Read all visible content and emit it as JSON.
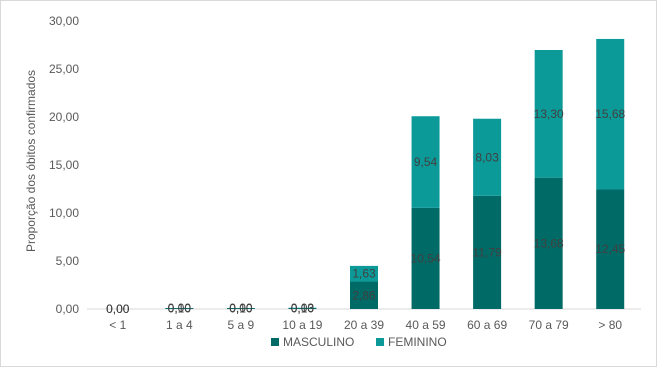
{
  "chart_data": {
    "type": "bar",
    "stacked": true,
    "title": "",
    "xlabel": "",
    "ylabel": "Proporção dos óbitos confirmados",
    "ylim": [
      0,
      30
    ],
    "yticks": [
      "0,00",
      "5,00",
      "10,00",
      "15,00",
      "20,00",
      "25,00",
      "30,00"
    ],
    "categories": [
      "< 1",
      "1 a 4",
      "5 a 9",
      "10 a 19",
      "20 a 39",
      "40 a 59",
      "60 a 69",
      "70 a 79",
      "> 80"
    ],
    "series": [
      {
        "name": "MASCULINO",
        "color": "#006a67",
        "values": [
          0.0,
          0.1,
          0.1,
          0.1,
          2.86,
          10.54,
          11.79,
          13.68,
          12.45
        ],
        "labels": [
          "0,00",
          "0,10",
          "0,10",
          "0,10",
          "2,86",
          "10,54",
          "11,79",
          "13,68",
          "12,45"
        ]
      },
      {
        "name": "FEMININO",
        "color": "#0c9a99",
        "values": [
          0.0,
          0.0,
          0.0,
          0.03,
          1.63,
          9.54,
          8.03,
          13.3,
          15.68
        ],
        "labels": [
          "0,00",
          "0,00",
          "0,00",
          "0,03",
          "1,63",
          "9,54",
          "8,03",
          "13,30",
          "15,68"
        ]
      }
    ],
    "grid": false,
    "legend": "bottom"
  }
}
